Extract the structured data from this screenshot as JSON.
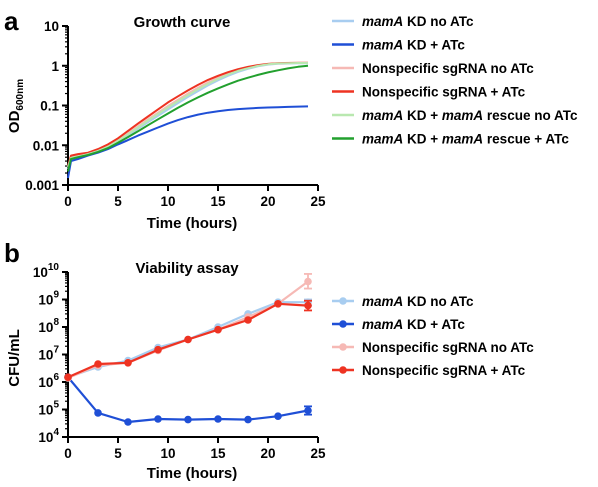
{
  "chart_data": [
    {
      "panel": "a",
      "type": "line",
      "title": "Growth curve",
      "xlabel": "Time (hours)",
      "ylabel": "OD600nm",
      "ylabel_main": "OD",
      "ylabel_sub": "600nm",
      "xlim": [
        0,
        25
      ],
      "ylim": [
        0.001,
        10
      ],
      "yscale": "log",
      "grid": false,
      "legend_position": "right",
      "x_ticks": [
        0,
        5,
        10,
        15,
        20,
        25
      ],
      "x_tick_labels": [
        "0",
        "5",
        "10",
        "15",
        "20",
        "25"
      ],
      "y_ticks": [
        0.001,
        0.01,
        0.1,
        1,
        10
      ],
      "y_tick_labels": [
        "0.001",
        "0.01",
        "0.1",
        "1",
        "10"
      ],
      "series": [
        {
          "name": "mamA KD no ATc",
          "name_italic": "mamA",
          "name_rest": " KD no ATc",
          "color": "#a8cdf0",
          "width": 2,
          "x": [
            0,
            0.3,
            1,
            2,
            3,
            4,
            5,
            6,
            7,
            8,
            9,
            10,
            11,
            12,
            13,
            14,
            15,
            16,
            17,
            18,
            19,
            20,
            21,
            22,
            23,
            24
          ],
          "y": [
            0.0025,
            0.0045,
            0.005,
            0.0058,
            0.007,
            0.009,
            0.0125,
            0.018,
            0.026,
            0.038,
            0.055,
            0.08,
            0.115,
            0.165,
            0.23,
            0.32,
            0.43,
            0.56,
            0.7,
            0.84,
            0.97,
            1.07,
            1.12,
            1.14,
            1.15,
            1.15
          ]
        },
        {
          "name": "mamA KD + ATc",
          "name_italic": "mamA",
          "name_rest": " KD + ATc",
          "color": "#1f4fd6",
          "width": 2,
          "x": [
            0,
            0.3,
            1,
            2,
            3,
            4,
            5,
            6,
            7,
            8,
            9,
            10,
            11,
            12,
            13,
            14,
            15,
            16,
            17,
            18,
            19,
            20,
            21,
            22,
            23,
            24
          ],
          "y": [
            0.0015,
            0.004,
            0.0045,
            0.0055,
            0.0065,
            0.008,
            0.0105,
            0.0135,
            0.0175,
            0.022,
            0.028,
            0.035,
            0.043,
            0.051,
            0.059,
            0.066,
            0.072,
            0.077,
            0.081,
            0.084,
            0.087,
            0.089,
            0.09,
            0.092,
            0.094,
            0.095
          ]
        },
        {
          "name": "Nonspecific sgRNA no ATc",
          "color": "#f6b9b5",
          "width": 2,
          "x": [
            0,
            0.3,
            1,
            2,
            3,
            4,
            5,
            6,
            7,
            8,
            9,
            10,
            11,
            12,
            13,
            14,
            15,
            16,
            17,
            18,
            19,
            20,
            21,
            22,
            23,
            24
          ],
          "y": [
            0.003,
            0.005,
            0.0055,
            0.0062,
            0.0075,
            0.0095,
            0.0135,
            0.02,
            0.03,
            0.045,
            0.066,
            0.097,
            0.14,
            0.2,
            0.28,
            0.38,
            0.5,
            0.63,
            0.77,
            0.9,
            1.01,
            1.1,
            1.15,
            1.18,
            1.19,
            1.2
          ]
        },
        {
          "name": "Nonspecific sgRNA + ATc",
          "color": "#ee3322",
          "width": 2,
          "x": [
            0,
            0.3,
            1,
            2,
            3,
            4,
            5,
            6,
            7,
            8,
            9,
            10,
            11,
            12,
            13,
            14,
            15,
            16,
            17,
            18,
            19,
            20,
            21,
            22,
            23,
            24
          ],
          "y": [
            0.003,
            0.0055,
            0.006,
            0.0065,
            0.008,
            0.0105,
            0.015,
            0.023,
            0.035,
            0.053,
            0.08,
            0.12,
            0.17,
            0.24,
            0.33,
            0.44,
            0.56,
            0.69,
            0.82,
            0.94,
            1.04,
            1.11,
            1.15,
            1.17,
            1.18,
            1.18
          ]
        },
        {
          "name": "mamA KD + mamA rescue no ATc",
          "color": "#b9e8b0",
          "width": 2,
          "x": [
            0,
            0.3,
            1,
            2,
            3,
            4,
            5,
            6,
            7,
            8,
            9,
            10,
            11,
            12,
            13,
            14,
            15,
            16,
            17,
            18,
            19,
            20,
            21,
            22,
            23,
            24
          ],
          "y": [
            0.0028,
            0.0048,
            0.0052,
            0.006,
            0.0072,
            0.0092,
            0.013,
            0.019,
            0.028,
            0.042,
            0.061,
            0.089,
            0.128,
            0.183,
            0.255,
            0.35,
            0.465,
            0.6,
            0.74,
            0.87,
            0.99,
            1.09,
            1.14,
            1.16,
            1.17,
            1.17
          ]
        },
        {
          "name": "mamA KD + mamA rescue + ATc",
          "color": "#22a02e",
          "width": 2,
          "x": [
            0,
            0.3,
            1,
            2,
            3,
            4,
            5,
            6,
            7,
            8,
            9,
            10,
            11,
            12,
            13,
            14,
            15,
            16,
            17,
            18,
            19,
            20,
            21,
            22,
            23,
            24
          ],
          "y": [
            0.0022,
            0.0045,
            0.005,
            0.0057,
            0.0068,
            0.0085,
            0.0115,
            0.016,
            0.0225,
            0.032,
            0.045,
            0.063,
            0.088,
            0.12,
            0.16,
            0.21,
            0.27,
            0.34,
            0.42,
            0.5,
            0.59,
            0.68,
            0.77,
            0.86,
            0.94,
            1.0
          ]
        }
      ]
    },
    {
      "panel": "b",
      "type": "line",
      "title": "Viability assay",
      "xlabel": "Time (hours)",
      "ylabel": "CFU/mL",
      "xlim": [
        0,
        25
      ],
      "ylim": [
        10000,
        10000000000
      ],
      "yscale": "log",
      "grid": false,
      "legend_position": "right",
      "x_ticks": [
        0,
        5,
        10,
        15,
        20,
        25
      ],
      "x_tick_labels": [
        "0",
        "5",
        "10",
        "15",
        "20",
        "25"
      ],
      "y_ticks": [
        10000,
        100000,
        1000000,
        10000000,
        100000000,
        1000000000,
        10000000000
      ],
      "y_tick_bases": [
        "10",
        "10",
        "10",
        "10",
        "10",
        "10",
        "10"
      ],
      "y_tick_exps": [
        "4",
        "5",
        "6",
        "7",
        "8",
        "9",
        "10"
      ],
      "series": [
        {
          "name": "mamA KD no ATc",
          "color": "#a8cdf0",
          "marker": "circle",
          "x": [
            0,
            3,
            6,
            9,
            12,
            15,
            18,
            21,
            24
          ],
          "y": [
            1500000,
            3500000,
            6000000,
            18000000,
            35000000,
            100000000,
            300000000,
            800000000,
            800000000
          ],
          "err_hi": [
            null,
            null,
            null,
            null,
            null,
            null,
            null,
            null,
            1000000000
          ],
          "err_lo": [
            null,
            null,
            null,
            null,
            null,
            null,
            null,
            null,
            600000000
          ]
        },
        {
          "name": "mamA KD + ATc",
          "color": "#1f4fd6",
          "marker": "circle",
          "x": [
            0,
            3,
            6,
            9,
            12,
            15,
            18,
            21,
            24
          ],
          "y": [
            1500000,
            75000,
            35000,
            45000,
            43000,
            45000,
            43000,
            57000,
            92000
          ],
          "err_hi": [
            null,
            null,
            null,
            null,
            null,
            null,
            null,
            null,
            130000
          ],
          "err_lo": [
            null,
            null,
            null,
            null,
            null,
            null,
            null,
            null,
            65000
          ]
        },
        {
          "name": "Nonspecific sgRNA no ATc",
          "color": "#f6b9b5",
          "marker": "circle",
          "x": [
            0,
            3,
            6,
            9,
            12,
            15,
            18,
            21,
            24
          ],
          "y": [
            1400000,
            4000000,
            5000000,
            14000000,
            35000000,
            80000000,
            230000000,
            700000000,
            4500000000
          ],
          "err_hi": [
            null,
            null,
            null,
            null,
            null,
            null,
            null,
            null,
            8500000000
          ],
          "err_lo": [
            null,
            null,
            null,
            null,
            null,
            null,
            null,
            null,
            2500000000
          ]
        },
        {
          "name": "Nonspecific sgRNA + ATc",
          "color": "#ee3322",
          "marker": "circle",
          "x": [
            0,
            3,
            6,
            9,
            12,
            15,
            18,
            21,
            24
          ],
          "y": [
            1500000,
            4500000,
            5000000,
            15000000,
            35000000,
            80000000,
            180000000,
            700000000,
            600000000
          ],
          "err_hi": [
            null,
            null,
            null,
            null,
            null,
            null,
            null,
            null,
            900000000
          ],
          "err_lo": [
            null,
            null,
            null,
            null,
            null,
            null,
            null,
            null,
            400000000
          ]
        }
      ]
    }
  ]
}
